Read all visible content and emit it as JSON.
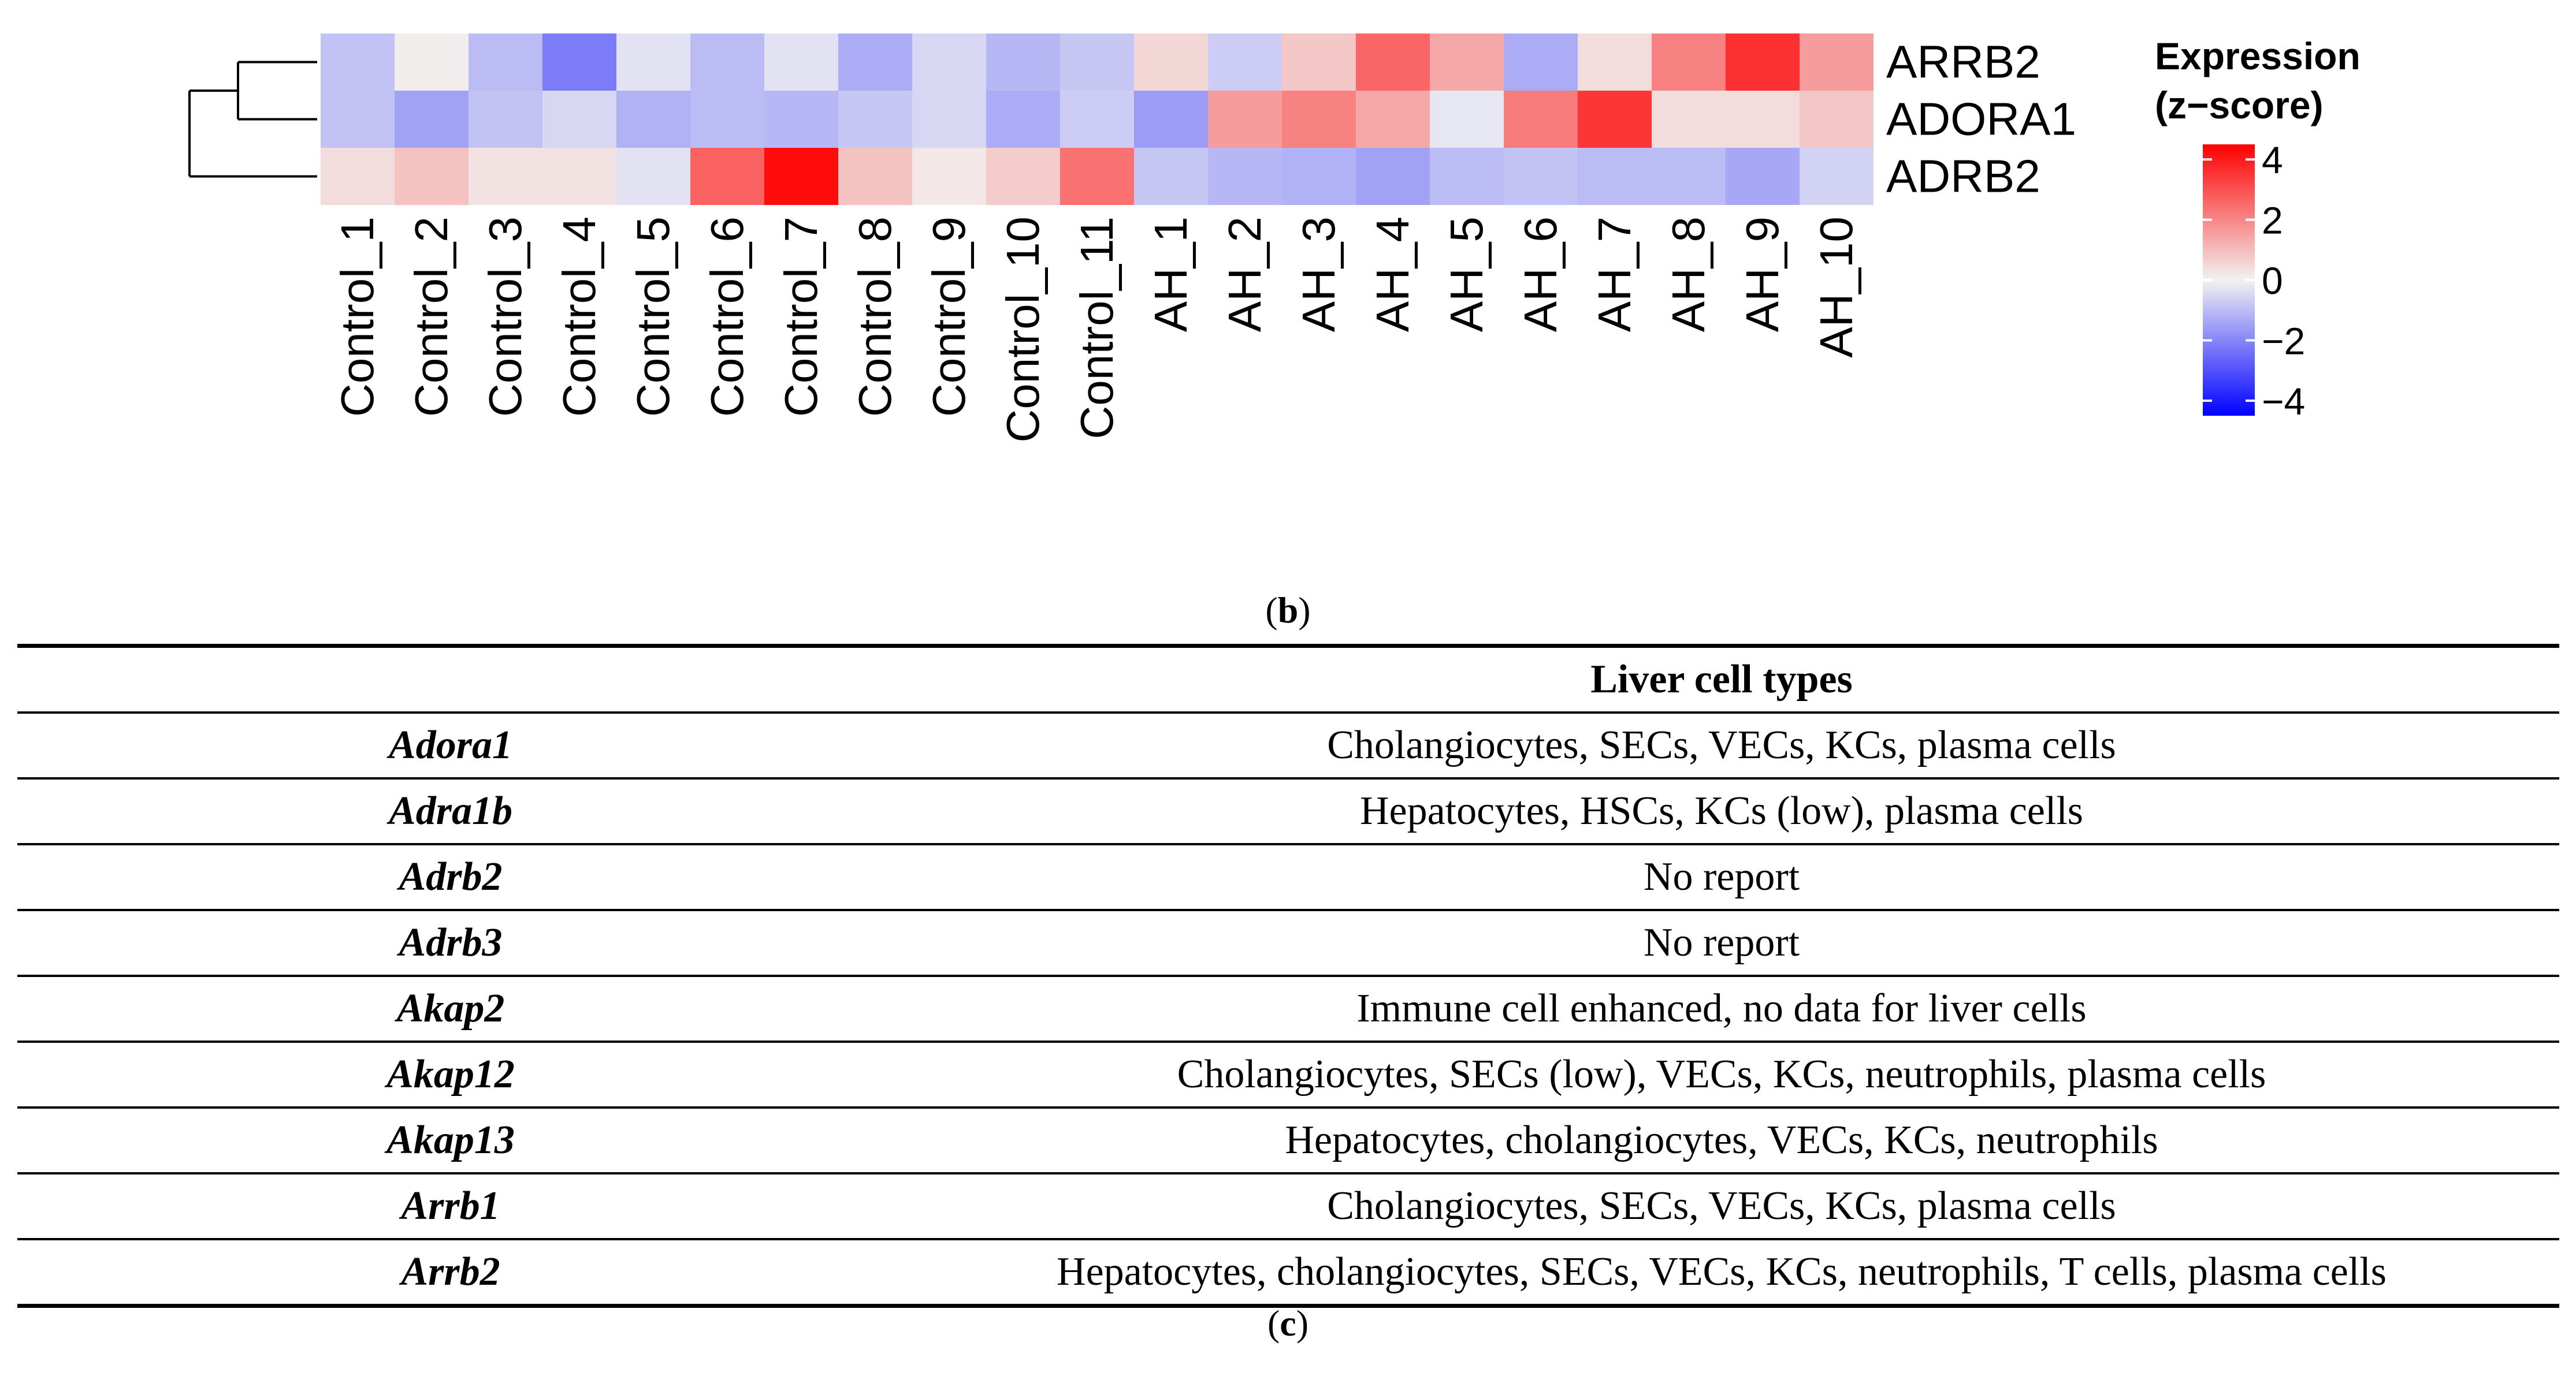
{
  "chart_data": {
    "type": "heatmap",
    "title": "",
    "xlabel": "",
    "ylabel": "",
    "columns": [
      "Control_1",
      "Control_2",
      "Control_3",
      "Control_4",
      "Control_5",
      "Control_6",
      "Control_7",
      "Control_8",
      "Control_9",
      "Control_10",
      "Control_11",
      "AH_1",
      "AH_2",
      "AH_3",
      "AH_4",
      "AH_5",
      "AH_6",
      "AH_7",
      "AH_8",
      "AH_9",
      "AH_10"
    ],
    "rows": [
      {
        "name": "ARRB2",
        "values": [
          -0.9,
          0.1,
          -1.0,
          -2.2,
          -0.3,
          -1.0,
          -0.3,
          -1.3,
          -0.5,
          -1.1,
          -0.8,
          0.5,
          -0.7,
          0.8,
          2.6,
          1.4,
          -1.3,
          0.4,
          2.1,
          3.6,
          1.6
        ]
      },
      {
        "name": "ADORA1",
        "values": [
          -0.9,
          -1.5,
          -0.9,
          -0.5,
          -1.2,
          -1.0,
          -1.1,
          -0.8,
          -0.5,
          -1.3,
          -0.7,
          -1.6,
          1.6,
          2.1,
          1.4,
          -0.2,
          2.2,
          3.5,
          0.4,
          0.4,
          0.8
        ]
      },
      {
        "name": "ADRB2",
        "values": [
          0.4,
          0.9,
          0.3,
          0.3,
          -0.3,
          2.7,
          4.3,
          0.9,
          0.2,
          0.7,
          2.4,
          -0.8,
          -1.1,
          -1.2,
          -1.5,
          -1.0,
          -0.9,
          -1.0,
          -1.0,
          -1.4,
          -0.6
        ]
      }
    ],
    "dendrogram": {
      "order": [
        "ARRB2",
        "ADORA1",
        "ADRB2"
      ],
      "first_merge": [
        "ARRB2",
        "ADORA1"
      ]
    },
    "legend": {
      "title_line1": "Expression",
      "title_line2": "(z−score)",
      "range": [
        -4.5,
        4.5
      ],
      "ticks": [
        4,
        2,
        0,
        -2,
        -4
      ],
      "tick_labels": [
        "4",
        "2",
        "0",
        "−2",
        "−4"
      ],
      "placement": "right"
    },
    "colors": {
      "low": "#0000ff",
      "mid": "#f2f2f2",
      "high": "#ff0000"
    }
  },
  "labels": {
    "panel_b": "b",
    "panel_c": "c"
  },
  "table": {
    "header": "Liver cell types",
    "rows": [
      {
        "gene": "Adora1",
        "cells": "Cholangiocytes, SECs, VECs, KCs, plasma cells"
      },
      {
        "gene": "Adra1b",
        "cells": "Hepatocytes, HSCs, KCs (low), plasma cells"
      },
      {
        "gene": "Adrb2",
        "cells": "No report"
      },
      {
        "gene": "Adrb3",
        "cells": "No report"
      },
      {
        "gene": "Akap2",
        "cells": "Immune cell enhanced, no data for liver cells"
      },
      {
        "gene": "Akap12",
        "cells": "Cholangiocytes, SECs (low), VECs, KCs, neutrophils, plasma cells"
      },
      {
        "gene": "Akap13",
        "cells": "Hepatocytes, cholangiocytes, VECs, KCs, neutrophils"
      },
      {
        "gene": "Arrb1",
        "cells": "Cholangiocytes, SECs, VECs, KCs, plasma cells"
      },
      {
        "gene": "Arrb2",
        "cells": "Hepatocytes, cholangiocytes, SECs, VECs, KCs, neutrophils, T cells, plasma cells"
      }
    ]
  }
}
